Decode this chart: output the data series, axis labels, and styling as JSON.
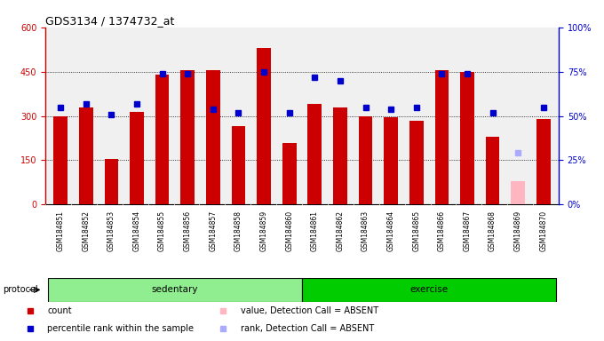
{
  "title": "GDS3134 / 1374732_at",
  "samples": [
    "GSM184851",
    "GSM184852",
    "GSM184853",
    "GSM184854",
    "GSM184855",
    "GSM184856",
    "GSM184857",
    "GSM184858",
    "GSM184859",
    "GSM184860",
    "GSM184861",
    "GSM184862",
    "GSM184863",
    "GSM184864",
    "GSM184865",
    "GSM184866",
    "GSM184867",
    "GSM184868",
    "GSM184869",
    "GSM184870"
  ],
  "red_values": [
    300,
    330,
    155,
    315,
    440,
    455,
    455,
    265,
    530,
    210,
    340,
    330,
    300,
    295,
    285,
    455,
    450,
    230,
    0,
    290
  ],
  "blue_values": [
    55,
    57,
    51,
    57,
    74,
    74,
    54,
    52,
    75,
    52,
    72,
    70,
    55,
    54,
    55,
    74,
    74,
    52,
    0,
    55
  ],
  "absent_red_val": 80,
  "absent_blue_val": 29,
  "absent_index": 18,
  "sedentary_count": 10,
  "left_ylim": [
    0,
    600
  ],
  "right_ylim": [
    0,
    100
  ],
  "left_yticks": [
    0,
    150,
    300,
    450,
    600
  ],
  "right_yticks": [
    0,
    25,
    50,
    75,
    100
  ],
  "right_yticklabels": [
    "0%",
    "25%",
    "50%",
    "75%",
    "100%"
  ],
  "bar_color": "#CC0000",
  "absent_bar_color": "#FFB6C1",
  "dot_color": "#0000CC",
  "absent_dot_color": "#AAAAFF",
  "plot_bg_color": "#F0F0F0",
  "tick_area_bg": "#D3D3D3",
  "sedentary_color": "#90EE90",
  "exercise_color": "#00CC00",
  "protocol_label": "protocol",
  "sedentary_label": "sedentary",
  "exercise_label": "exercise",
  "legend_items": [
    {
      "label": "count",
      "color": "#CC0000"
    },
    {
      "label": "percentile rank within the sample",
      "color": "#0000CC"
    },
    {
      "label": "value, Detection Call = ABSENT",
      "color": "#FFB6C1"
    },
    {
      "label": "rank, Detection Call = ABSENT",
      "color": "#AAAAFF"
    }
  ]
}
